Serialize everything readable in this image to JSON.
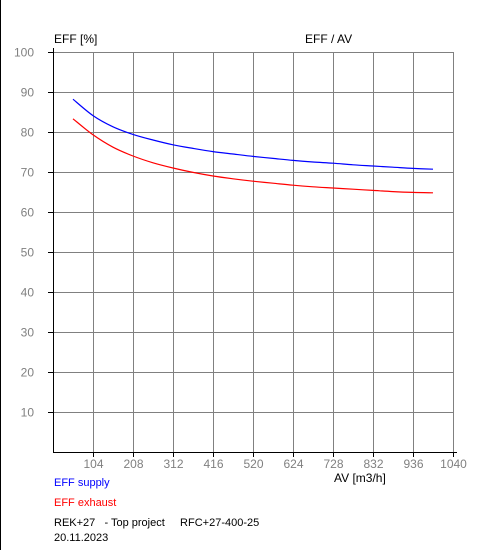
{
  "chart_data": {
    "type": "line",
    "title": "EFF / AV",
    "ylabel": "EFF [%]",
    "xlabel": "AV [m3/h]",
    "xlim": [
      0,
      1040
    ],
    "ylim": [
      0,
      100
    ],
    "x_ticks": [
      "104",
      "208",
      "312",
      "416",
      "520",
      "624",
      "728",
      "832",
      "936",
      "1040"
    ],
    "y_ticks": [
      "10",
      "20",
      "30",
      "40",
      "50",
      "60",
      "70",
      "80",
      "90",
      "100"
    ],
    "grid": true,
    "legend_position": "bottom-left",
    "series": [
      {
        "name": "EFF supply",
        "color": "#0000ff",
        "x": [
          52,
          104,
          156,
          208,
          260,
          312,
          364,
          416,
          468,
          520,
          572,
          624,
          676,
          728,
          780,
          832,
          884,
          936,
          988
        ],
        "y": [
          88.2,
          84.1,
          81.3,
          79.4,
          78.0,
          76.8,
          75.9,
          75.1,
          74.5,
          73.9,
          73.4,
          72.9,
          72.5,
          72.2,
          71.8,
          71.5,
          71.2,
          70.9,
          70.7
        ]
      },
      {
        "name": "EFF exhaust",
        "color": "#ff0000",
        "x": [
          52,
          104,
          156,
          208,
          260,
          312,
          364,
          416,
          468,
          520,
          572,
          624,
          676,
          728,
          780,
          832,
          884,
          936,
          988
        ],
        "y": [
          83.3,
          79.3,
          76.2,
          74.0,
          72.3,
          71.0,
          69.9,
          69.0,
          68.3,
          67.7,
          67.2,
          66.7,
          66.3,
          66.0,
          65.7,
          65.4,
          65.1,
          64.9,
          64.8
        ]
      }
    ]
  },
  "footer": {
    "project_line": "REK+27   - Top project     RFC+27-400-25",
    "date": "20.11.2023"
  }
}
